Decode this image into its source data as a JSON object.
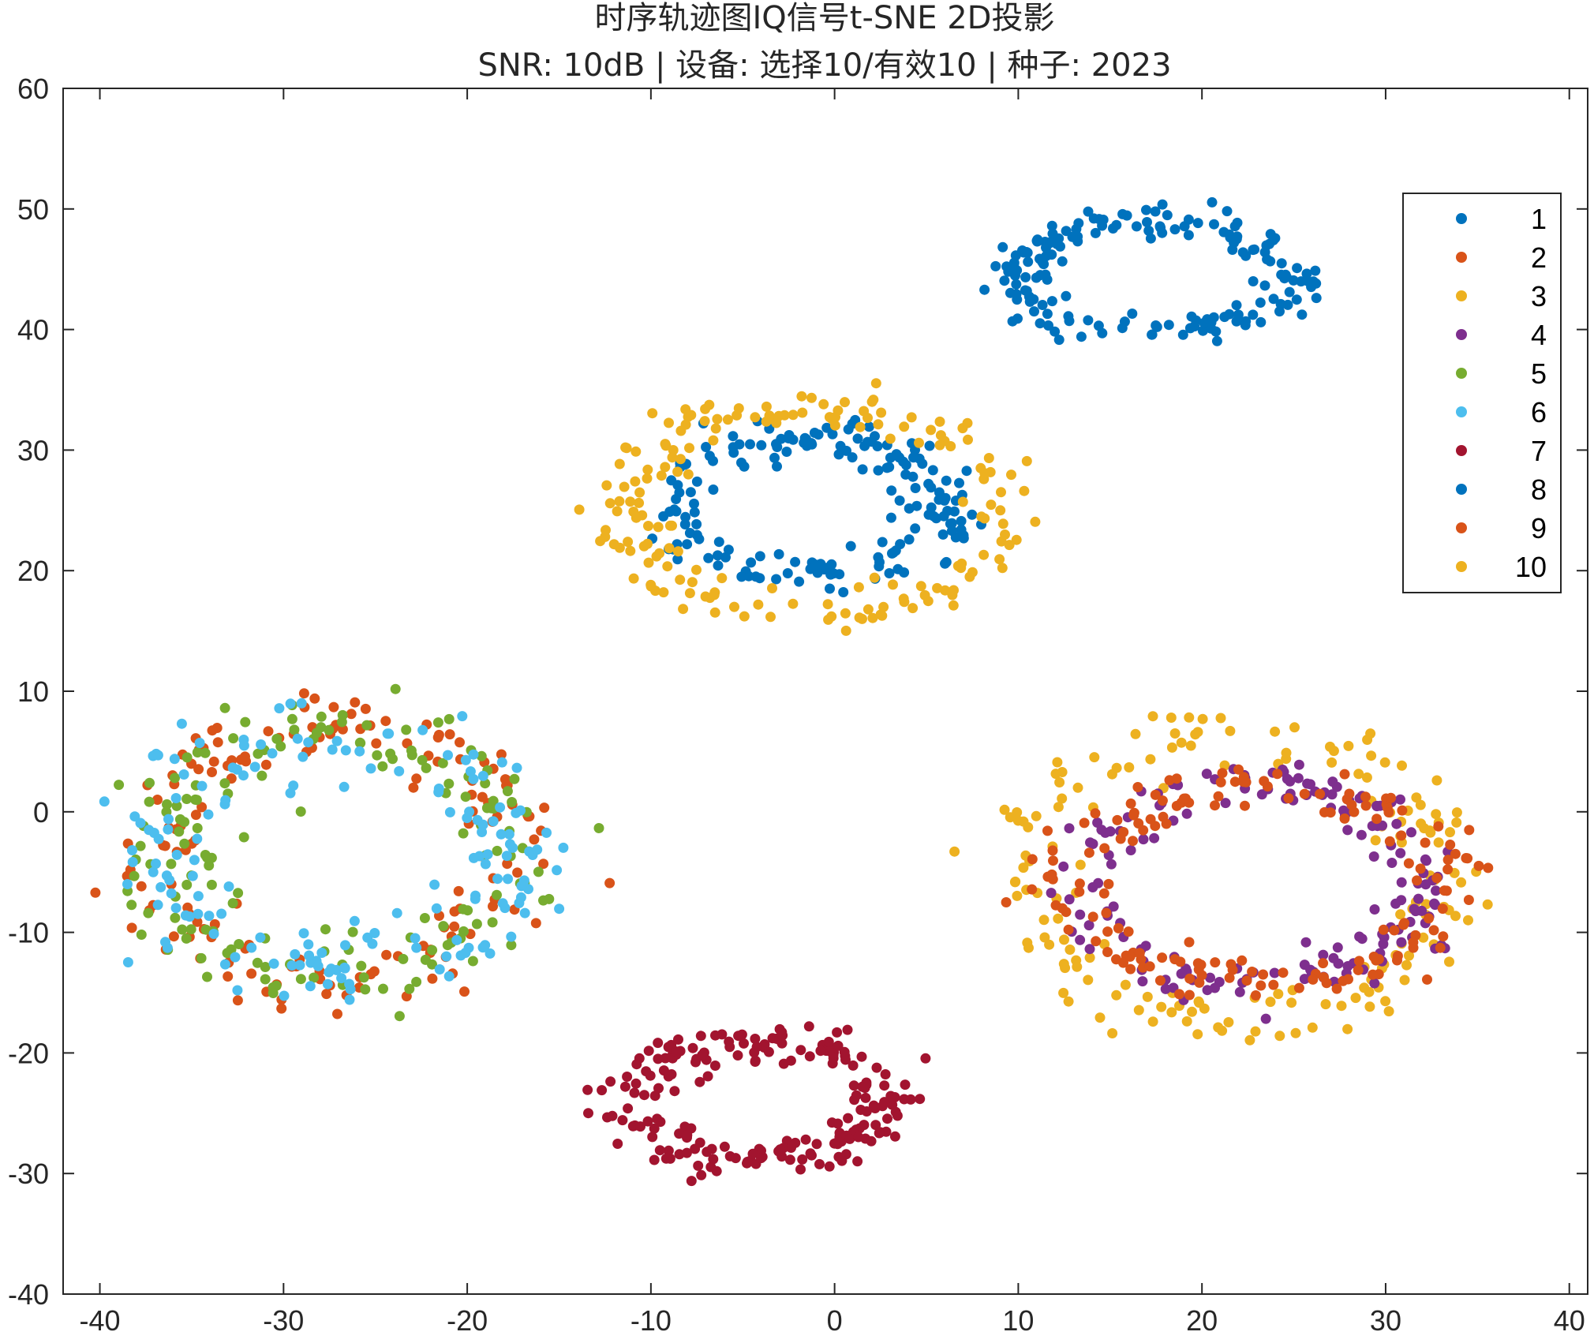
{
  "chart_data": {
    "type": "scatter",
    "title": "时序轨迹图IQ信号t-SNE 2D投影",
    "subtitle": "SNR: 10dB | 设备: 选择10/有效10 | 种子: 2023",
    "xlabel": "",
    "ylabel": "",
    "xlim": [
      -42,
      41
    ],
    "ylim": [
      -40,
      60
    ],
    "xticks": [
      -40,
      -30,
      -20,
      -10,
      0,
      10,
      20,
      30,
      40
    ],
    "yticks": [
      -40,
      -30,
      -20,
      -10,
      0,
      10,
      20,
      30,
      40,
      50,
      60
    ],
    "grid": false,
    "legend_position": "top-right",
    "series": [
      {
        "name": "1",
        "color": "#0072BD",
        "center": [
          17.5,
          44.5
        ],
        "shape": "ring",
        "rx": 7.5,
        "ry": 4.5,
        "band": 2.0,
        "n": 180
      },
      {
        "name": "2",
        "color": "#D95319",
        "center": [
          -27.0,
          -3.5
        ],
        "shape": "ring",
        "rx": 10.5,
        "ry": 10.5,
        "band": 2.6,
        "n": 160
      },
      {
        "name": "3",
        "color": "#EDB120",
        "center": [
          21.5,
          -5.5
        ],
        "shape": "ring",
        "rx": 11.5,
        "ry": 12.0,
        "band": 2.2,
        "n": 170
      },
      {
        "name": "4",
        "color": "#7E2F8E",
        "center": [
          23.0,
          -6.0
        ],
        "shape": "ring",
        "rx": 9.0,
        "ry": 8.5,
        "band": 1.8,
        "n": 170
      },
      {
        "name": "5",
        "color": "#77AC30",
        "center": [
          -27.0,
          -3.5
        ],
        "shape": "ring",
        "rx": 9.5,
        "ry": 10.0,
        "band": 2.6,
        "n": 160
      },
      {
        "name": "6",
        "color": "#4DBEEE",
        "center": [
          -27.0,
          -3.5
        ],
        "shape": "ring",
        "rx": 10.0,
        "ry": 10.0,
        "band": 2.8,
        "n": 170
      },
      {
        "name": "7",
        "color": "#A2142F",
        "center": [
          -4.5,
          -24.0
        ],
        "shape": "ring",
        "rx": 7.0,
        "ry": 5.0,
        "band": 1.8,
        "n": 210
      },
      {
        "name": "8",
        "color": "#0072BD",
        "center": [
          -1.5,
          25.5
        ],
        "shape": "ring",
        "rx": 7.5,
        "ry": 5.5,
        "band": 1.9,
        "n": 180
      },
      {
        "name": "9",
        "color": "#D95319",
        "center": [
          23.0,
          -6.0
        ],
        "shape": "ring",
        "rx": 10.5,
        "ry": 8.0,
        "band": 2.0,
        "n": 170
      },
      {
        "name": "10",
        "color": "#EDB120",
        "center": [
          -1.0,
          25.0
        ],
        "shape": "ring",
        "rx": 10.5,
        "ry": 8.5,
        "band": 1.9,
        "n": 180
      }
    ]
  }
}
